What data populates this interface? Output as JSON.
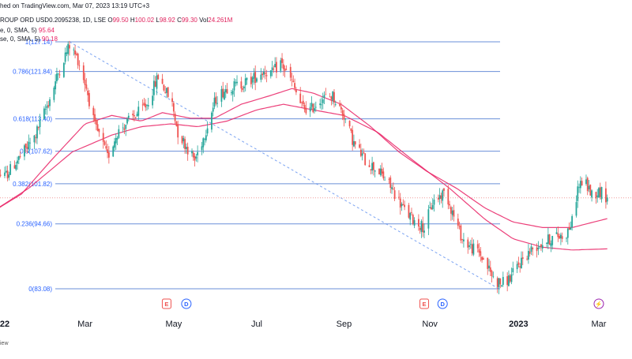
{
  "header": {
    "published": "hed on TradingView.com, Mar 07, 2023 13:19 UTC+3",
    "symbol": "ROUP ORD USD0.2095238, 1D, LSE",
    "o_label": "O",
    "o_value": "99.50",
    "h_label": "H",
    "h_value": "100.02",
    "l_label": "L",
    "l_value": "98.92",
    "c_label": "C",
    "c_value": "99.30",
    "vol_label": "Vol",
    "vol_value": "24.261M",
    "ma1_text": "e, 0, SMA, 5)",
    "ma1_value": "95.64",
    "ma2_text": "se, 0, SMA, 5)",
    "ma2_value": "90.18"
  },
  "watermark": "iew",
  "colors": {
    "up": "#26a69a",
    "down": "#ef5350",
    "ma": "#e91e63",
    "fib": "#2962ff",
    "trend": "#5b8def"
  },
  "chart_data": {
    "type": "candlestick",
    "title": "",
    "xlabel": "",
    "ylabel": "",
    "ylim": [
      82.5,
      130.8
    ],
    "x_axis_labels": [
      "22",
      "Mar",
      "May",
      "Jul",
      "Sep",
      "Nov",
      "2023",
      "Mar"
    ],
    "x_label_dates": [
      "2022-01-03",
      "2022-03-01",
      "2022-05-03",
      "2022-07-01",
      "2022-09-01",
      "2022-11-01",
      "2023-01-03",
      "2023-03-01"
    ],
    "fib_levels": [
      {
        "label": "1(127.14)",
        "value": 127.14
      },
      {
        "label": "0.786(121.84)",
        "value": 121.84
      },
      {
        "label": "0.618(113.40)",
        "value": 113.4
      },
      {
        "label": "0.5(107.62)",
        "value": 107.62
      },
      {
        "label": "0.382(101.82)",
        "value": 101.82
      },
      {
        "label": "0.236(94.66)",
        "value": 94.66
      },
      {
        "label": "0(83.08)",
        "value": 83.08
      }
    ],
    "trendline": {
      "start": {
        "x": "2022-02-18",
        "y": 127.14
      },
      "end": {
        "x": "2022-12-20",
        "y": 83.08
      }
    },
    "current_price": 99.3,
    "event_markers": [
      {
        "date": "2022-04-28",
        "label": "E"
      },
      {
        "date": "2022-05-12",
        "label": "D"
      },
      {
        "date": "2022-10-28",
        "label": "E"
      },
      {
        "date": "2022-11-10",
        "label": "D"
      },
      {
        "date": "2023-03-01",
        "label": "⚡"
      }
    ],
    "price_anchors": [
      [
        "2021-12-20",
        104.5
      ],
      [
        "2022-01-03",
        103
      ],
      [
        "2022-01-12",
        106
      ],
      [
        "2022-01-24",
        110
      ],
      [
        "2022-02-04",
        117
      ],
      [
        "2022-02-12",
        123
      ],
      [
        "2022-02-18",
        126.5
      ],
      [
        "2022-02-24",
        124
      ],
      [
        "2022-03-02",
        119
      ],
      [
        "2022-03-08",
        112
      ],
      [
        "2022-03-12",
        110
      ],
      [
        "2022-03-17",
        106.5
      ],
      [
        "2022-03-24",
        111
      ],
      [
        "2022-04-01",
        113
      ],
      [
        "2022-04-08",
        114.5
      ],
      [
        "2022-04-14",
        116
      ],
      [
        "2022-04-22",
        121
      ],
      [
        "2022-05-02",
        116
      ],
      [
        "2022-05-06",
        111
      ],
      [
        "2022-05-12",
        108.5
      ],
      [
        "2022-05-18",
        106
      ],
      [
        "2022-05-24",
        110
      ],
      [
        "2022-06-02",
        117
      ],
      [
        "2022-06-10",
        119
      ],
      [
        "2022-06-20",
        119.5
      ],
      [
        "2022-06-28",
        120.5
      ],
      [
        "2022-07-06",
        122
      ],
      [
        "2022-07-12",
        121.5
      ],
      [
        "2022-07-18",
        123.5
      ],
      [
        "2022-07-26",
        120
      ],
      [
        "2022-08-02",
        115.5
      ],
      [
        "2022-08-08",
        115
      ],
      [
        "2022-08-16",
        117
      ],
      [
        "2022-08-24",
        117.5
      ],
      [
        "2022-09-01",
        114
      ],
      [
        "2022-09-08",
        109
      ],
      [
        "2022-09-16",
        106
      ],
      [
        "2022-09-26",
        104
      ],
      [
        "2022-10-05",
        101
      ],
      [
        "2022-10-14",
        97
      ],
      [
        "2022-10-22",
        95
      ],
      [
        "2022-10-28",
        94
      ],
      [
        "2022-11-03",
        98.5
      ],
      [
        "2022-11-12",
        100.5
      ],
      [
        "2022-11-18",
        96
      ],
      [
        "2022-11-24",
        92
      ],
      [
        "2022-11-30",
        90.5
      ],
      [
        "2022-12-06",
        89.5
      ],
      [
        "2022-12-12",
        87
      ],
      [
        "2022-12-17",
        84.5
      ],
      [
        "2022-12-22",
        84
      ],
      [
        "2022-12-28",
        85
      ],
      [
        "2023-01-06",
        88.5
      ],
      [
        "2023-01-14",
        90.5
      ],
      [
        "2023-01-22",
        91.5
      ],
      [
        "2023-01-30",
        92.5
      ],
      [
        "2023-02-05",
        92.5
      ],
      [
        "2023-02-10",
        95
      ],
      [
        "2023-02-14",
        101
      ],
      [
        "2023-02-18",
        102.5
      ],
      [
        "2023-02-24",
        100
      ],
      [
        "2023-03-02",
        100.5
      ],
      [
        "2023-03-07",
        99.3
      ]
    ],
    "ma_short_anchors": [
      [
        "2021-12-20",
        96
      ],
      [
        "2022-01-15",
        100
      ],
      [
        "2022-02-05",
        106
      ],
      [
        "2022-03-01",
        112.5
      ],
      [
        "2022-03-20",
        114
      ],
      [
        "2022-04-10",
        113
      ],
      [
        "2022-04-25",
        114.5
      ],
      [
        "2022-05-15",
        113.5
      ],
      [
        "2022-06-01",
        113.5
      ],
      [
        "2022-06-20",
        116
      ],
      [
        "2022-07-10",
        117.5
      ],
      [
        "2022-07-26",
        118.8
      ],
      [
        "2022-08-10",
        118
      ],
      [
        "2022-08-30",
        116
      ],
      [
        "2022-09-20",
        112
      ],
      [
        "2022-10-10",
        107.5
      ],
      [
        "2022-10-30",
        104
      ],
      [
        "2022-11-20",
        101
      ],
      [
        "2022-12-10",
        97.5
      ],
      [
        "2022-12-30",
        95
      ],
      [
        "2023-01-20",
        94
      ],
      [
        "2023-02-10",
        94
      ],
      [
        "2023-03-07",
        95.6
      ]
    ],
    "ma_long_anchors": [
      [
        "2021-12-20",
        96
      ],
      [
        "2022-01-20",
        101
      ],
      [
        "2022-02-20",
        107.5
      ],
      [
        "2022-03-20",
        110.5
      ],
      [
        "2022-04-10",
        112
      ],
      [
        "2022-05-01",
        112.5
      ],
      [
        "2022-05-20",
        112
      ],
      [
        "2022-06-10",
        113
      ],
      [
        "2022-07-01",
        115
      ],
      [
        "2022-07-20",
        116
      ],
      [
        "2022-08-10",
        115
      ],
      [
        "2022-09-01",
        114
      ],
      [
        "2022-09-25",
        111
      ],
      [
        "2022-10-20",
        106
      ],
      [
        "2022-11-15",
        101
      ],
      [
        "2022-12-10",
        95.5
      ],
      [
        "2022-12-30",
        92
      ],
      [
        "2023-01-20",
        90.5
      ],
      [
        "2023-02-10",
        90
      ],
      [
        "2023-03-07",
        90.2
      ]
    ]
  }
}
